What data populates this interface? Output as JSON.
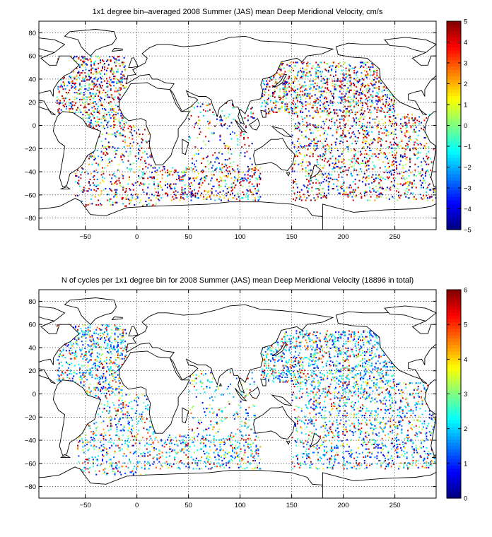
{
  "chart_data": [
    {
      "type": "heatmap",
      "title": "1x1 degree bin–averaged 2008 Summer (JAS) mean Deep Meridional Velocity, cm/s",
      "xlim": [
        -95,
        290
      ],
      "ylim": [
        -90,
        90
      ],
      "xticks": [
        -50,
        0,
        50,
        100,
        150,
        200,
        250
      ],
      "yticks": [
        -80,
        -60,
        -40,
        -20,
        0,
        20,
        40,
        60,
        80
      ],
      "colorbar": {
        "min": -5,
        "max": 5,
        "ticks": [
          5,
          4,
          3,
          2,
          1,
          0,
          -1,
          -2,
          -3,
          -4,
          -5
        ],
        "colormap": "jet"
      },
      "grid": true
    },
    {
      "type": "heatmap",
      "title": "N of cycles per 1x1 degree bin for 2008 Summer (JAS) mean Deep Meridional Velocity (18896 in total)",
      "xlim": [
        -95,
        290
      ],
      "ylim": [
        -90,
        90
      ],
      "xticks": [
        -50,
        0,
        50,
        100,
        150,
        200,
        250
      ],
      "yticks": [
        -80,
        -60,
        -40,
        -20,
        0,
        20,
        40,
        60,
        80
      ],
      "colorbar": {
        "min": 0,
        "max": 6,
        "ticks": [
          6,
          5,
          4,
          3,
          2,
          1,
          0
        ],
        "colormap": "jet"
      },
      "grid": true
    }
  ]
}
